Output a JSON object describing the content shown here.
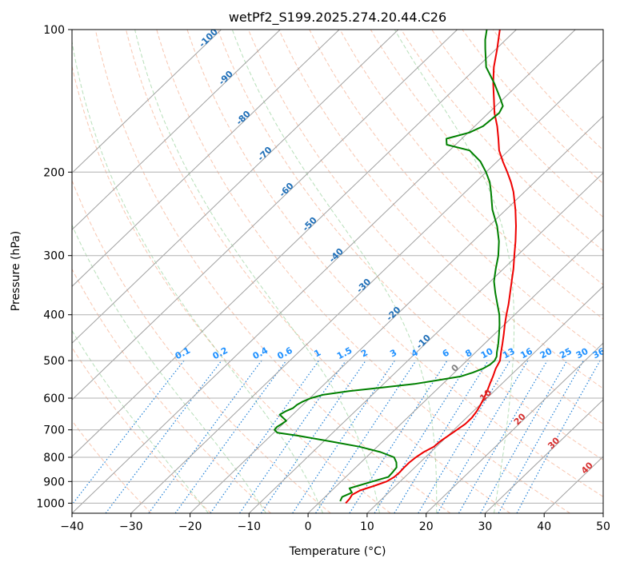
{
  "chart_data": {
    "type": "line",
    "title": "wetPf2_S199.2025.274.20.44.C26",
    "xlabel": "Temperature (°C)",
    "ylabel": "Pressure (hPa)",
    "xlim": [
      -40,
      50
    ],
    "ylim": [
      1050,
      100
    ],
    "x_ticks": [
      -40,
      -30,
      -20,
      -10,
      0,
      10,
      20,
      30,
      40,
      50
    ],
    "x_tick_labels": [
      "−40",
      "−30",
      "−20",
      "−10",
      "0",
      "10",
      "20",
      "30",
      "40",
      "50"
    ],
    "y_ticks": [
      100,
      200,
      300,
      400,
      500,
      600,
      700,
      800,
      900,
      1000
    ],
    "y_tick_labels": [
      "100",
      "200",
      "300",
      "400",
      "500",
      "600",
      "700",
      "800",
      "900",
      "1000"
    ],
    "isotherms": [
      -100,
      -90,
      -80,
      -70,
      -60,
      -50,
      -40,
      -30,
      -20,
      -10,
      0,
      10,
      20,
      30,
      40
    ],
    "isotherm_labels": [
      {
        "text": "-100",
        "value": -100
      },
      {
        "text": "-90",
        "value": -90
      },
      {
        "text": "-80",
        "value": -80
      },
      {
        "text": "-70",
        "value": -70
      },
      {
        "text": "-60",
        "value": -60
      },
      {
        "text": "-50",
        "value": -50
      },
      {
        "text": "-40",
        "value": -40
      },
      {
        "text": "-30",
        "value": -30
      },
      {
        "text": "-20",
        "value": -20
      },
      {
        "text": "-10",
        "value": -10
      },
      {
        "text": "0",
        "value": 0
      },
      {
        "text": "10",
        "value": 10
      },
      {
        "text": "20",
        "value": 20
      },
      {
        "text": "30",
        "value": 30
      },
      {
        "text": "40",
        "value": 40
      }
    ],
    "mixing_ratios": [
      {
        "text": "0.1",
        "value": 0.1
      },
      {
        "text": "0.2",
        "value": 0.2
      },
      {
        "text": "0.4",
        "value": 0.4
      },
      {
        "text": "0.6",
        "value": 0.6
      },
      {
        "text": "1",
        "value": 1
      },
      {
        "text": "1.5",
        "value": 1.5
      },
      {
        "text": "2",
        "value": 2
      },
      {
        "text": "3",
        "value": 3
      },
      {
        "text": "4",
        "value": 4
      },
      {
        "text": "6",
        "value": 6
      },
      {
        "text": "8",
        "value": 8
      },
      {
        "text": "10",
        "value": 10
      },
      {
        "text": "13",
        "value": 13
      },
      {
        "text": "16",
        "value": 16
      },
      {
        "text": "20",
        "value": 20
      },
      {
        "text": "25",
        "value": 25
      },
      {
        "text": "30",
        "value": 30
      },
      {
        "text": "36",
        "value": 36
      }
    ],
    "dry_adiabats_c": [
      -30,
      -20,
      -10,
      0,
      10,
      20,
      30,
      40,
      50,
      60,
      70,
      80,
      90,
      100,
      110,
      120,
      130,
      140,
      150
    ],
    "moist_adiabats_c": [
      -20,
      -10,
      0,
      10,
      20,
      30
    ],
    "series": [
      {
        "name": "Temperature",
        "color": "#ee0000",
        "points": [
          [
            1000,
            4.6
          ],
          [
            980,
            4.5
          ],
          [
            960,
            4.2
          ],
          [
            940,
            4.8
          ],
          [
            920,
            6.3
          ],
          [
            900,
            7.7
          ],
          [
            880,
            8.2
          ],
          [
            860,
            8.3
          ],
          [
            840,
            8.2
          ],
          [
            820,
            8.2
          ],
          [
            800,
            8.4
          ],
          [
            780,
            8.8
          ],
          [
            760,
            9.6
          ],
          [
            740,
            9.7
          ],
          [
            720,
            10.1
          ],
          [
            700,
            10.5
          ],
          [
            680,
            10.9
          ],
          [
            660,
            10.9
          ],
          [
            640,
            10.6
          ],
          [
            620,
            10.1
          ],
          [
            600,
            9.5
          ],
          [
            580,
            8.8
          ],
          [
            560,
            8.0
          ],
          [
            540,
            7.2
          ],
          [
            520,
            6.3
          ],
          [
            500,
            5.6
          ],
          [
            480,
            4.3
          ],
          [
            460,
            3.0
          ],
          [
            440,
            1.6
          ],
          [
            420,
            0.1
          ],
          [
            400,
            -1.4
          ],
          [
            380,
            -2.9
          ],
          [
            360,
            -4.6
          ],
          [
            340,
            -6.4
          ],
          [
            320,
            -8.3
          ],
          [
            300,
            -10.5
          ],
          [
            280,
            -12.8
          ],
          [
            260,
            -15.4
          ],
          [
            240,
            -18.4
          ],
          [
            220,
            -21.9
          ],
          [
            210,
            -24.0
          ],
          [
            200,
            -26.4
          ],
          [
            190,
            -29.0
          ],
          [
            180,
            -31.6
          ],
          [
            170,
            -33.8
          ],
          [
            160,
            -36.2
          ],
          [
            150,
            -39.0
          ],
          [
            140,
            -41.6
          ],
          [
            130,
            -44.4
          ],
          [
            120,
            -47.2
          ],
          [
            110,
            -49.8
          ],
          [
            100,
            -52.8
          ]
        ]
      },
      {
        "name": "Dewpoint",
        "color": "#008000",
        "points": [
          [
            990,
            3.3
          ],
          [
            970,
            2.9
          ],
          [
            950,
            3.8
          ],
          [
            930,
            2.6
          ],
          [
            920,
            3.5
          ],
          [
            900,
            5.3
          ],
          [
            880,
            7.2
          ],
          [
            860,
            7.1
          ],
          [
            840,
            6.9
          ],
          [
            820,
            6.0
          ],
          [
            800,
            4.7
          ],
          [
            780,
            1.5
          ],
          [
            760,
            -3.0
          ],
          [
            740,
            -9.0
          ],
          [
            720,
            -15.5
          ],
          [
            710,
            -19.4
          ],
          [
            700,
            -20.4
          ],
          [
            690,
            -20.5
          ],
          [
            680,
            -20.2
          ],
          [
            670,
            -20.0
          ],
          [
            660,
            -21.1
          ],
          [
            650,
            -22.2
          ],
          [
            640,
            -21.8
          ],
          [
            630,
            -21.1
          ],
          [
            620,
            -21.0
          ],
          [
            610,
            -20.6
          ],
          [
            600,
            -19.8
          ],
          [
            590,
            -18.3
          ],
          [
            580,
            -14.6
          ],
          [
            570,
            -9.6
          ],
          [
            560,
            -4.8
          ],
          [
            550,
            -1.5
          ],
          [
            540,
            1.7
          ],
          [
            530,
            3.1
          ],
          [
            520,
            4.1
          ],
          [
            510,
            4.6
          ],
          [
            500,
            4.7
          ],
          [
            490,
            4.3
          ],
          [
            480,
            3.6
          ],
          [
            460,
            2.3
          ],
          [
            440,
            0.8
          ],
          [
            420,
            -0.8
          ],
          [
            400,
            -2.6
          ],
          [
            380,
            -4.8
          ],
          [
            360,
            -7.1
          ],
          [
            340,
            -9.4
          ],
          [
            320,
            -11.3
          ],
          [
            300,
            -13.2
          ],
          [
            280,
            -15.6
          ],
          [
            260,
            -18.6
          ],
          [
            240,
            -22.3
          ],
          [
            220,
            -25.7
          ],
          [
            210,
            -27.6
          ],
          [
            200,
            -30.0
          ],
          [
            190,
            -32.8
          ],
          [
            180,
            -36.6
          ],
          [
            175,
            -41.5
          ],
          [
            170,
            -42.6
          ],
          [
            168,
            -41.5
          ],
          [
            165,
            -39.8
          ],
          [
            160,
            -38.6
          ],
          [
            150,
            -38.2
          ],
          [
            145,
            -38.8
          ],
          [
            140,
            -40.5
          ],
          [
            130,
            -44.2
          ],
          [
            120,
            -48.5
          ],
          [
            110,
            -51.8
          ],
          [
            105,
            -53.5
          ],
          [
            100,
            -55.0
          ]
        ]
      }
    ]
  }
}
